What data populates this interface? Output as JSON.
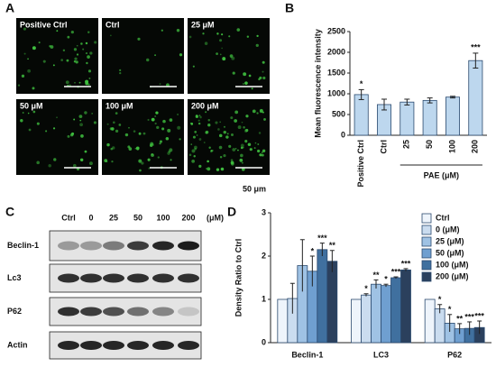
{
  "panel_a": {
    "letter": "A",
    "images": [
      "Positive Ctrl",
      "Ctrl",
      "25 μM",
      "50 μM",
      "100 μM",
      "200 μM"
    ],
    "scale_bar": "50 μm"
  },
  "panel_c": {
    "letter": "C",
    "lanes": [
      "Ctrl",
      "0",
      "25",
      "50",
      "100",
      "200"
    ],
    "unit": "(μM)",
    "rows": [
      "Beclin-1",
      "Lc3",
      "P62",
      "Actin"
    ]
  },
  "chart_data": [
    {
      "type": "bar",
      "letter": "B",
      "ylabel": "Mean fluorescence intensity",
      "group_label": "PAE (μM)",
      "categories": [
        "Positive Ctrl",
        "Ctrl",
        "25",
        "50",
        "100",
        "200"
      ],
      "values": [
        980,
        740,
        800,
        840,
        920,
        1800
      ],
      "errors": [
        120,
        130,
        70,
        60,
        20,
        180
      ],
      "significance": [
        "*",
        null,
        null,
        null,
        null,
        "***"
      ],
      "color": "#bdd7ee",
      "ylim": [
        0,
        2500
      ],
      "yticks": [
        0,
        500,
        1000,
        1500,
        2000,
        2500
      ]
    },
    {
      "type": "grouped_bar",
      "letter": "D",
      "ylabel": "Density Ratio to Ctrl",
      "categories": [
        "Beclin-1",
        "LC3",
        "P62"
      ],
      "series": [
        {
          "name": "Ctrl",
          "color": "#eef4fb",
          "values": [
            1,
            1,
            1
          ],
          "errors": [
            0,
            0,
            0
          ],
          "significance": [
            null,
            null,
            null
          ]
        },
        {
          "name": "0 (μM)",
          "color": "#cadcef",
          "values": [
            1.02,
            1.1,
            0.78
          ],
          "errors": [
            0.35,
            0.03,
            0.1
          ],
          "significance": [
            null,
            "*",
            "*"
          ]
        },
        {
          "name": "25 (μM)",
          "color": "#9fc2e4",
          "values": [
            1.78,
            1.35,
            0.45
          ],
          "errors": [
            0.6,
            0.1,
            0.2
          ],
          "significance": [
            null,
            "**",
            "*"
          ]
        },
        {
          "name": "50 (μM)",
          "color": "#6f9fd0",
          "values": [
            1.65,
            1.32,
            0.32
          ],
          "errors": [
            0.35,
            0.03,
            0.12
          ],
          "significance": [
            "*",
            "*",
            "**"
          ]
        },
        {
          "name": "100 (μM)",
          "color": "#40709f",
          "values": [
            2.15,
            1.5,
            0.33
          ],
          "errors": [
            0.15,
            0.02,
            0.15
          ],
          "significance": [
            "***",
            "***",
            "***"
          ]
        },
        {
          "name": "200 (μM)",
          "color": "#2b405d",
          "values": [
            1.88,
            1.68,
            0.35
          ],
          "errors": [
            0.25,
            0.03,
            0.15
          ],
          "significance": [
            "**",
            "***",
            "***"
          ]
        }
      ],
      "ylim": [
        0,
        3
      ],
      "yticks": [
        0,
        1,
        2,
        3
      ]
    }
  ]
}
